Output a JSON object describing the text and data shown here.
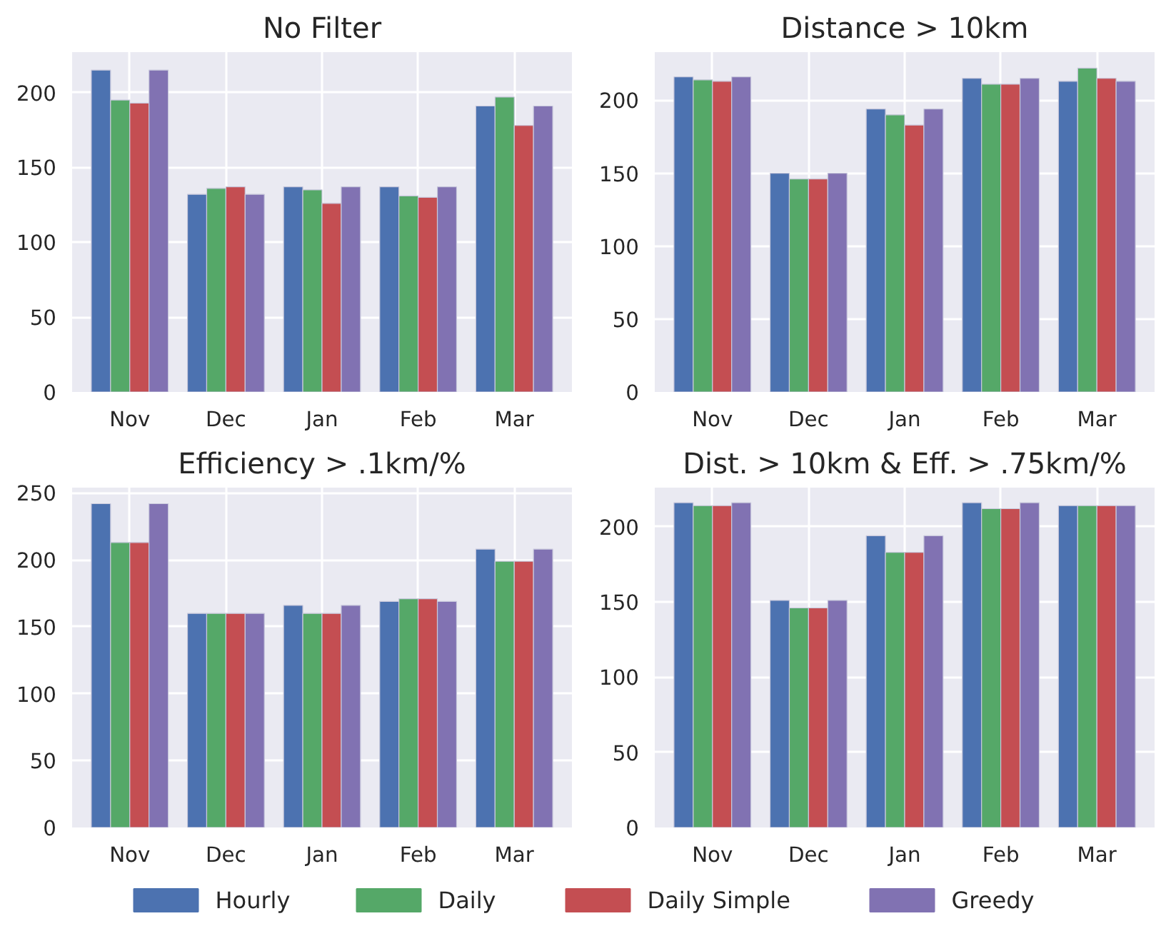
{
  "chart_data": [
    {
      "type": "bar",
      "title": "No Filter",
      "categories": [
        "Nov",
        "Dec",
        "Jan",
        "Feb",
        "Mar"
      ],
      "ylim": [
        0,
        227
      ],
      "yticks": [
        0,
        50,
        100,
        150,
        200
      ],
      "grid": true,
      "series": [
        {
          "color": "#4c72b0",
          "values": [
            215,
            132,
            137,
            137,
            191
          ]
        },
        {
          "color": "#55a868",
          "values": [
            195,
            136,
            135,
            131,
            197
          ]
        },
        {
          "color": "#c44e52",
          "values": [
            193,
            137,
            126,
            130,
            178
          ]
        },
        {
          "color": "#8172b2",
          "values": [
            215,
            132,
            137,
            137,
            191
          ]
        }
      ]
    },
    {
      "type": "bar",
      "title": "Distance > 10km",
      "categories": [
        "Nov",
        "Dec",
        "Jan",
        "Feb",
        "Mar"
      ],
      "ylim": [
        0,
        233
      ],
      "yticks": [
        0,
        50,
        100,
        150,
        200
      ],
      "grid": true,
      "series": [
        {
          "color": "#4c72b0",
          "values": [
            216,
            150,
            194,
            215,
            213
          ]
        },
        {
          "color": "#55a868",
          "values": [
            214,
            146,
            190,
            211,
            222
          ]
        },
        {
          "color": "#c44e52",
          "values": [
            213,
            146,
            183,
            211,
            215
          ]
        },
        {
          "color": "#8172b2",
          "values": [
            216,
            150,
            194,
            215,
            213
          ]
        }
      ]
    },
    {
      "type": "bar",
      "title": "Efficiency > .1km/%",
      "categories": [
        "Nov",
        "Dec",
        "Jan",
        "Feb",
        "Mar"
      ],
      "ylim": [
        0,
        254
      ],
      "yticks": [
        0,
        50,
        100,
        150,
        200,
        250
      ],
      "grid": true,
      "series": [
        {
          "color": "#4c72b0",
          "values": [
            242,
            160,
            166,
            169,
            208
          ]
        },
        {
          "color": "#55a868",
          "values": [
            213,
            160,
            160,
            171,
            199
          ]
        },
        {
          "color": "#c44e52",
          "values": [
            213,
            160,
            160,
            171,
            199
          ]
        },
        {
          "color": "#8172b2",
          "values": [
            242,
            160,
            166,
            169,
            208
          ]
        }
      ]
    },
    {
      "type": "bar",
      "title": "Dist. > 10km & Eff. > .75km/%",
      "categories": [
        "Nov",
        "Dec",
        "Jan",
        "Feb",
        "Mar"
      ],
      "ylim": [
        0,
        226
      ],
      "yticks": [
        0,
        50,
        100,
        150,
        200
      ],
      "grid": true,
      "legend": "bottom",
      "series": [
        {
          "name": "Hourly",
          "color": "#4c72b0",
          "values": [
            216,
            151,
            194,
            216,
            214
          ]
        },
        {
          "name": "Daily",
          "color": "#55a868",
          "values": [
            214,
            146,
            183,
            212,
            214
          ]
        },
        {
          "name": "Daily Simple",
          "color": "#c44e52",
          "values": [
            214,
            146,
            183,
            212,
            214
          ]
        },
        {
          "name": "Greedy",
          "color": "#8172b2",
          "values": [
            216,
            151,
            194,
            216,
            214
          ]
        }
      ]
    }
  ]
}
